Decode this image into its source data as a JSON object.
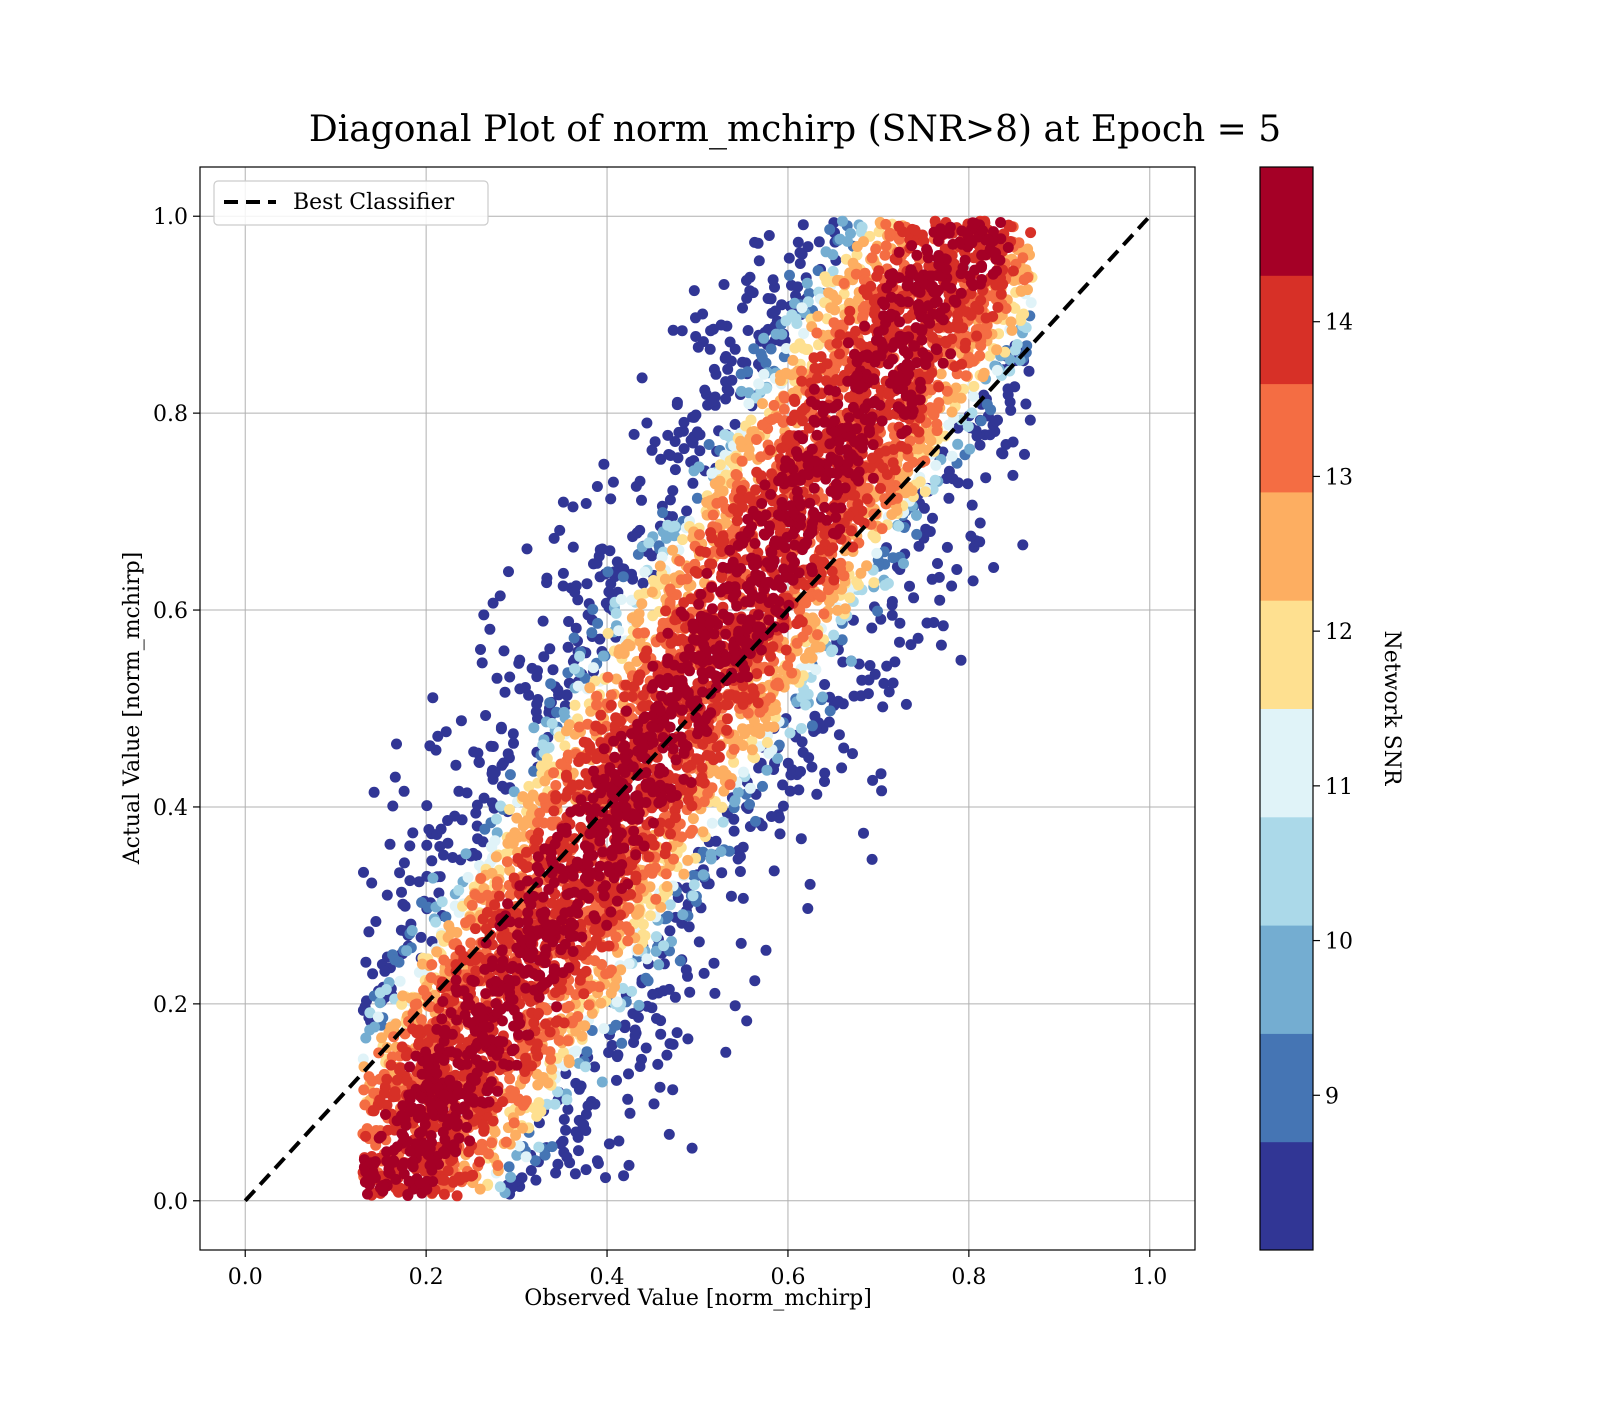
{
  "chart_data": {
    "type": "scatter",
    "title": "Diagonal Plot of norm_mchirp (SNR>8) at Epoch = 5",
    "xlabel": "Observed Value [norm_mchirp]",
    "ylabel": "Actual Value [norm_mchirp]",
    "xlim": [
      -0.05,
      1.05
    ],
    "ylim": [
      -0.05,
      1.05
    ],
    "x_ticks": [
      "0.0",
      "0.2",
      "0.4",
      "0.6",
      "0.8",
      "1.0"
    ],
    "y_ticks": [
      "0.0",
      "0.2",
      "0.4",
      "0.6",
      "0.8",
      "1.0"
    ],
    "grid": true,
    "legend": {
      "placement": "top-left",
      "entries": [
        "Best Classifier"
      ]
    },
    "reference_line": {
      "name": "Best Classifier",
      "x": [
        0,
        1
      ],
      "y": [
        0,
        1
      ],
      "style": "dashed",
      "color": "#000000"
    },
    "scatter_description_region": {
      "x_range": [
        0.13,
        0.87
      ],
      "y_range": [
        0.0,
        1.0
      ],
      "relation": "actual ≈ observed ± ~0.25, high SNR concentrated along the diagonal"
    },
    "colorbar": {
      "label": "Network SNR",
      "range": [
        8,
        15
      ],
      "ticks": [
        "9",
        "10",
        "11",
        "12",
        "13",
        "14"
      ],
      "tick_values": [
        9,
        10,
        11,
        12,
        13,
        14
      ],
      "bins": 10,
      "colors": [
        "#313695",
        "#4575b4",
        "#74add1",
        "#abd9e9",
        "#e0f3f8",
        "#fee090",
        "#fdae61",
        "#f46d43",
        "#d73027",
        "#a50026"
      ]
    }
  }
}
